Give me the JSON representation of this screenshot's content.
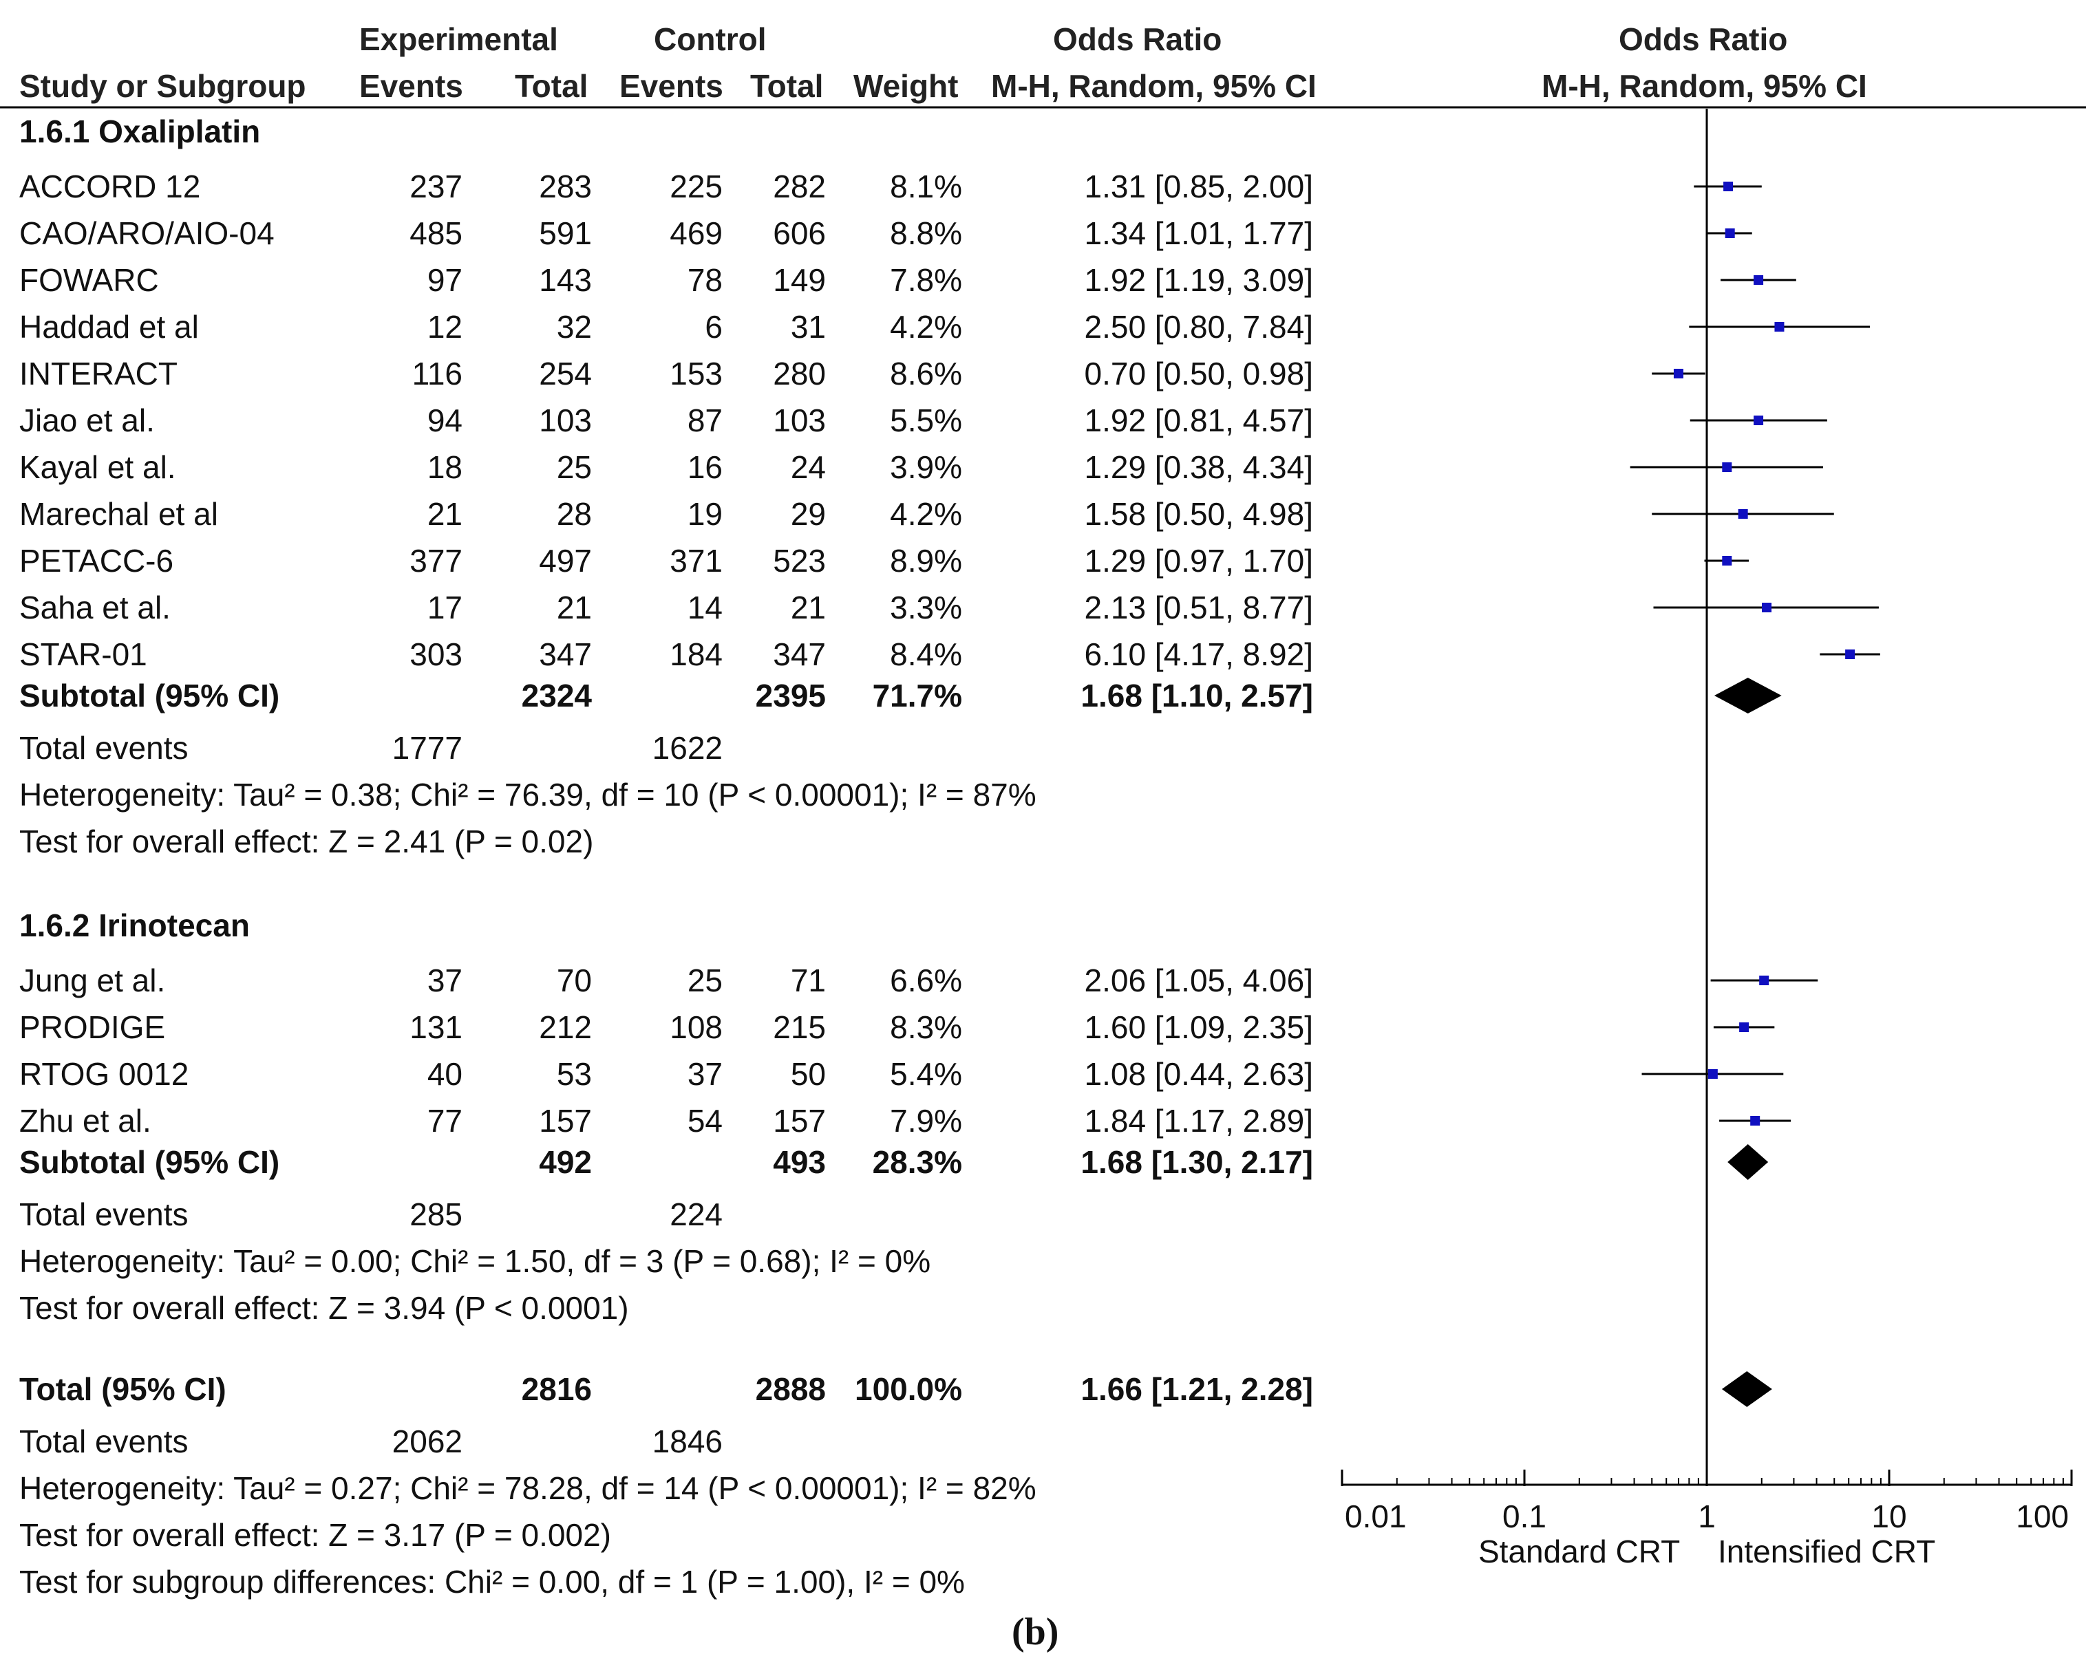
{
  "figure": {
    "caption": "(b)"
  },
  "headers": {
    "experimental": "Experimental",
    "control": "Control",
    "odds_ratio_left": "Odds Ratio",
    "odds_ratio_right": "Odds Ratio",
    "study_col": "Study or Subgroup",
    "events": "Events",
    "total": "Total",
    "weight": "Weight",
    "method_left": "M-H, Random, 95% CI",
    "method_right": "M-H, Random, 95% CI"
  },
  "axis": {
    "tick_labels": [
      "0.01",
      "0.1",
      "1",
      "10",
      "100"
    ],
    "favours_left": "Standard CRT",
    "favours_right": "Intensified CRT"
  },
  "chart_data": {
    "type": "forest",
    "title": "Odds Ratio M-H, Random, 95% CI",
    "x_scale": "log",
    "xlim": [
      0.01,
      100
    ],
    "ticks": [
      0.01,
      0.1,
      1,
      10,
      100
    ],
    "reference_line": 1,
    "groups": [
      {
        "label": "1.6.1 Oxaliplatin",
        "studies": [
          {
            "name": "ACCORD 12",
            "e_events": "237",
            "e_total": "283",
            "c_events": "225",
            "c_total": "282",
            "weight": "8.1%",
            "ci_text": "1.31 [0.85, 2.00]",
            "or": 1.31,
            "lo": 0.85,
            "hi": 2.0
          },
          {
            "name": "CAO/ARO/AIO-04",
            "e_events": "485",
            "e_total": "591",
            "c_events": "469",
            "c_total": "606",
            "weight": "8.8%",
            "ci_text": "1.34 [1.01, 1.77]",
            "or": 1.34,
            "lo": 1.01,
            "hi": 1.77
          },
          {
            "name": "FOWARC",
            "e_events": "97",
            "e_total": "143",
            "c_events": "78",
            "c_total": "149",
            "weight": "7.8%",
            "ci_text": "1.92 [1.19, 3.09]",
            "or": 1.92,
            "lo": 1.19,
            "hi": 3.09
          },
          {
            "name": "Haddad et al",
            "e_events": "12",
            "e_total": "32",
            "c_events": "6",
            "c_total": "31",
            "weight": "4.2%",
            "ci_text": "2.50 [0.80, 7.84]",
            "or": 2.5,
            "lo": 0.8,
            "hi": 7.84
          },
          {
            "name": "INTERACT",
            "e_events": "116",
            "e_total": "254",
            "c_events": "153",
            "c_total": "280",
            "weight": "8.6%",
            "ci_text": "0.70 [0.50, 0.98]",
            "or": 0.7,
            "lo": 0.5,
            "hi": 0.98
          },
          {
            "name": "Jiao et al.",
            "e_events": "94",
            "e_total": "103",
            "c_events": "87",
            "c_total": "103",
            "weight": "5.5%",
            "ci_text": "1.92 [0.81, 4.57]",
            "or": 1.92,
            "lo": 0.81,
            "hi": 4.57
          },
          {
            "name": "Kayal et al.",
            "e_events": "18",
            "e_total": "25",
            "c_events": "16",
            "c_total": "24",
            "weight": "3.9%",
            "ci_text": "1.29 [0.38, 4.34]",
            "or": 1.29,
            "lo": 0.38,
            "hi": 4.34
          },
          {
            "name": "Marechal et al",
            "e_events": "21",
            "e_total": "28",
            "c_events": "19",
            "c_total": "29",
            "weight": "4.2%",
            "ci_text": "1.58 [0.50, 4.98]",
            "or": 1.58,
            "lo": 0.5,
            "hi": 4.98
          },
          {
            "name": "PETACC-6",
            "e_events": "377",
            "e_total": "497",
            "c_events": "371",
            "c_total": "523",
            "weight": "8.9%",
            "ci_text": "1.29 [0.97, 1.70]",
            "or": 1.29,
            "lo": 0.97,
            "hi": 1.7
          },
          {
            "name": "Saha et al.",
            "e_events": "17",
            "e_total": "21",
            "c_events": "14",
            "c_total": "21",
            "weight": "3.3%",
            "ci_text": "2.13 [0.51, 8.77]",
            "or": 2.13,
            "lo": 0.51,
            "hi": 8.77
          },
          {
            "name": "STAR-01",
            "e_events": "303",
            "e_total": "347",
            "c_events": "184",
            "c_total": "347",
            "weight": "8.4%",
            "ci_text": "6.10 [4.17, 8.92]",
            "or": 6.1,
            "lo": 4.17,
            "hi": 8.92
          }
        ],
        "subtotal": {
          "label": "Subtotal (95% CI)",
          "e_total": "2324",
          "c_total": "2395",
          "weight": "71.7%",
          "ci_text": "1.68 [1.10, 2.57]",
          "or": 1.68,
          "lo": 1.1,
          "hi": 2.57
        },
        "total_events": {
          "label": "Total events",
          "e": "1777",
          "c": "1622"
        },
        "heterogeneity": "Heterogeneity: Tau² = 0.38; Chi² = 76.39, df = 10 (P < 0.00001); I² = 87%",
        "overall_effect": "Test for overall effect: Z = 2.41 (P = 0.02)"
      },
      {
        "label": "1.6.2 Irinotecan",
        "studies": [
          {
            "name": "Jung et al.",
            "e_events": "37",
            "e_total": "70",
            "c_events": "25",
            "c_total": "71",
            "weight": "6.6%",
            "ci_text": "2.06 [1.05, 4.06]",
            "or": 2.06,
            "lo": 1.05,
            "hi": 4.06
          },
          {
            "name": "PRODIGE",
            "e_events": "131",
            "e_total": "212",
            "c_events": "108",
            "c_total": "215",
            "weight": "8.3%",
            "ci_text": "1.60 [1.09, 2.35]",
            "or": 1.6,
            "lo": 1.09,
            "hi": 2.35
          },
          {
            "name": "RTOG 0012",
            "e_events": "40",
            "e_total": "53",
            "c_events": "37",
            "c_total": "50",
            "weight": "5.4%",
            "ci_text": "1.08 [0.44, 2.63]",
            "or": 1.08,
            "lo": 0.44,
            "hi": 2.63
          },
          {
            "name": "Zhu et al.",
            "e_events": "77",
            "e_total": "157",
            "c_events": "54",
            "c_total": "157",
            "weight": "7.9%",
            "ci_text": "1.84 [1.17, 2.89]",
            "or": 1.84,
            "lo": 1.17,
            "hi": 2.89
          }
        ],
        "subtotal": {
          "label": "Subtotal (95% CI)",
          "e_total": "492",
          "c_total": "493",
          "weight": "28.3%",
          "ci_text": "1.68 [1.30, 2.17]",
          "or": 1.68,
          "lo": 1.3,
          "hi": 2.17
        },
        "total_events": {
          "label": "Total events",
          "e": "285",
          "c": "224"
        },
        "heterogeneity": "Heterogeneity: Tau² = 0.00; Chi² = 1.50, df = 3 (P = 0.68); I² = 0%",
        "overall_effect": "Test for overall effect: Z = 3.94 (P < 0.0001)"
      }
    ],
    "overall": {
      "label": "Total (95% CI)",
      "e_total": "2816",
      "c_total": "2888",
      "weight": "100.0%",
      "ci_text": "1.66 [1.21, 2.28]",
      "or": 1.66,
      "lo": 1.21,
      "hi": 2.28,
      "total_events": {
        "label": "Total events",
        "e": "2062",
        "c": "1846"
      },
      "heterogeneity": "Heterogeneity: Tau² = 0.27; Chi² = 78.28, df = 14 (P < 0.00001); I² = 82%",
      "overall_effect": "Test for overall effect: Z = 3.17 (P = 0.002)",
      "subgroup_diff": "Test for subgroup differences: Chi² = 0.00, df = 1 (P = 1.00), I² = 0%"
    }
  },
  "colors": {
    "text": "#111111",
    "marker": "#1010c0",
    "line": "#000000"
  }
}
